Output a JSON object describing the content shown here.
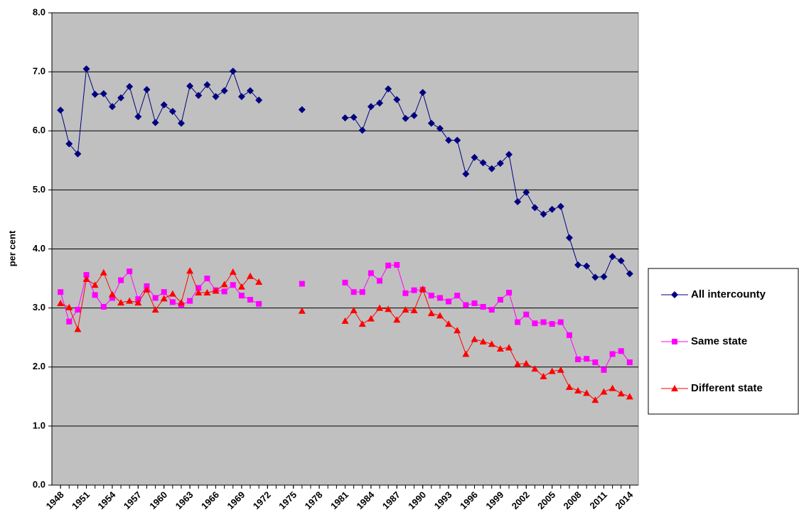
{
  "chart_data": {
    "type": "line",
    "y_label": "per cent",
    "x": [
      1948,
      1949,
      1950,
      1951,
      1952,
      1953,
      1954,
      1955,
      1956,
      1957,
      1958,
      1959,
      1960,
      1961,
      1962,
      1963,
      1964,
      1965,
      1966,
      1967,
      1968,
      1969,
      1970,
      1971,
      1972,
      1973,
      1974,
      1975,
      1976,
      1977,
      1978,
      1979,
      1980,
      1981,
      1982,
      1983,
      1984,
      1985,
      1986,
      1987,
      1988,
      1989,
      1990,
      1991,
      1992,
      1993,
      1994,
      1995,
      1996,
      1997,
      1998,
      1999,
      2000,
      2001,
      2002,
      2003,
      2004,
      2005,
      2006,
      2007,
      2008,
      2009,
      2010,
      2011,
      2012,
      2013,
      2014
    ],
    "xlim": [
      1947,
      2015
    ],
    "xticks": [
      1948,
      1951,
      1954,
      1957,
      1960,
      1963,
      1966,
      1969,
      1972,
      1975,
      1978,
      1981,
      1984,
      1987,
      1990,
      1993,
      1996,
      1999,
      2002,
      2005,
      2008,
      2011,
      2014
    ],
    "ylim": [
      0,
      8
    ],
    "yticks": [
      {
        "value": 0,
        "label": "0.0"
      },
      {
        "value": 1,
        "label": "1.0"
      },
      {
        "value": 2,
        "label": "2.0"
      },
      {
        "value": 3,
        "label": "3.0"
      },
      {
        "value": 4,
        "label": "4.0"
      },
      {
        "value": 5,
        "label": "5.0"
      },
      {
        "value": 6,
        "label": "6.0"
      },
      {
        "value": 7,
        "label": "7.0"
      },
      {
        "value": 8,
        "label": "8.0"
      }
    ],
    "grid": true,
    "legend": "right",
    "series": [
      {
        "name": "All intercounty",
        "color": "#000080",
        "marker": "diamond",
        "values": [
          6.35,
          5.78,
          5.61,
          7.05,
          6.62,
          6.63,
          6.41,
          6.56,
          6.75,
          6.24,
          6.7,
          6.14,
          6.44,
          6.33,
          6.13,
          6.76,
          6.6,
          6.78,
          6.58,
          6.68,
          7.01,
          6.58,
          6.68,
          6.52,
          null,
          null,
          null,
          null,
          6.36,
          null,
          null,
          null,
          null,
          6.22,
          6.23,
          6.01,
          6.41,
          6.47,
          6.71,
          6.53,
          6.21,
          6.26,
          6.65,
          6.13,
          6.04,
          5.84,
          5.84,
          5.27,
          5.55,
          5.46,
          5.36,
          5.45,
          5.6,
          4.8,
          4.96,
          4.7,
          4.59,
          4.67,
          4.72,
          4.19,
          3.73,
          3.71,
          3.52,
          3.53,
          3.87,
          3.8,
          3.58
        ]
      },
      {
        "name": "Same state",
        "color": "#ff00ff",
        "marker": "square",
        "values": [
          3.27,
          2.77,
          2.97,
          3.56,
          3.22,
          3.02,
          3.17,
          3.47,
          3.62,
          3.15,
          3.37,
          3.17,
          3.27,
          3.1,
          3.05,
          3.12,
          3.34,
          3.5,
          3.3,
          3.28,
          3.39,
          3.21,
          3.14,
          3.07,
          null,
          null,
          null,
          null,
          3.41,
          null,
          null,
          null,
          null,
          3.43,
          3.27,
          3.27,
          3.59,
          3.46,
          3.72,
          3.73,
          3.25,
          3.3,
          3.31,
          3.21,
          3.17,
          3.11,
          3.21,
          3.05,
          3.08,
          3.02,
          2.97,
          3.14,
          3.26,
          2.76,
          2.89,
          2.74,
          2.76,
          2.73,
          2.76,
          2.54,
          2.13,
          2.14,
          2.08,
          1.95,
          2.22,
          2.27,
          2.08
        ]
      },
      {
        "name": "Different state",
        "color": "#ff0000",
        "marker": "triangle",
        "values": [
          3.08,
          3.01,
          2.64,
          3.49,
          3.39,
          3.6,
          3.23,
          3.09,
          3.12,
          3.09,
          3.31,
          2.97,
          3.16,
          3.24,
          3.09,
          3.63,
          3.26,
          3.26,
          3.29,
          3.4,
          3.61,
          3.36,
          3.54,
          3.44,
          null,
          null,
          null,
          null,
          2.95,
          null,
          null,
          null,
          null,
          2.78,
          2.96,
          2.73,
          2.82,
          3.0,
          2.98,
          2.8,
          2.97,
          2.96,
          3.32,
          2.91,
          2.87,
          2.73,
          2.62,
          2.22,
          2.47,
          2.43,
          2.39,
          2.31,
          2.33,
          2.05,
          2.06,
          1.97,
          1.84,
          1.93,
          1.95,
          1.66,
          1.6,
          1.56,
          1.44,
          1.58,
          1.64,
          1.55,
          1.5
        ]
      }
    ]
  }
}
